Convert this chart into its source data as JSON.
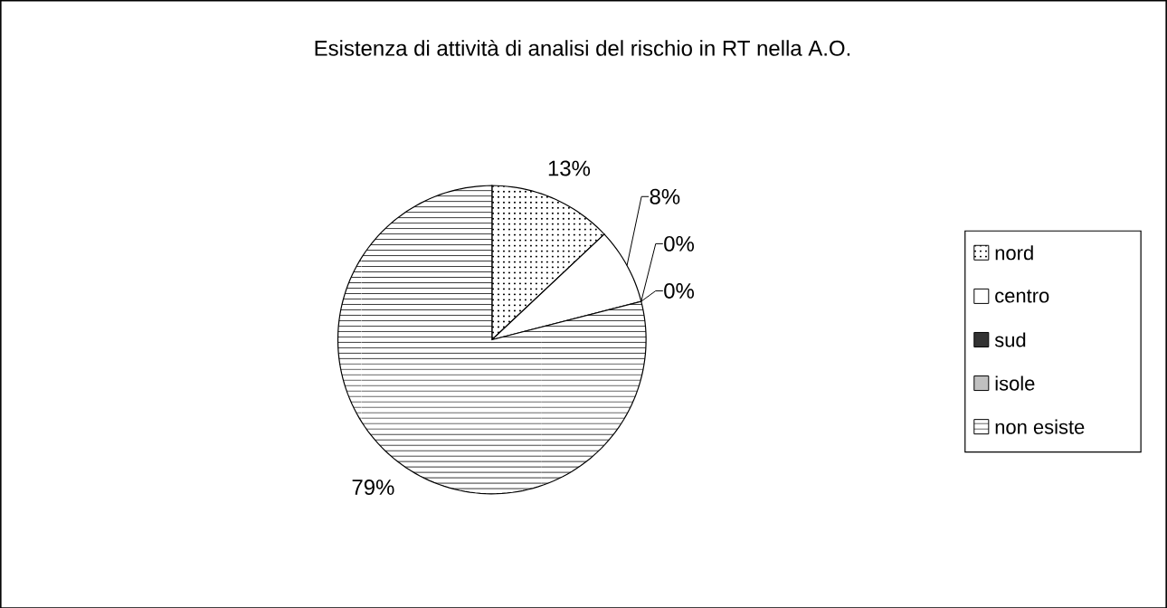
{
  "chart_data": {
    "type": "pie",
    "title": "Esistenza di attività di analisi del rischio in RT nella A.O.",
    "categories": [
      "nord",
      "centro",
      "sud",
      "isole",
      "non esiste"
    ],
    "values": [
      13,
      8,
      0,
      0,
      79
    ],
    "value_labels": [
      "13%",
      "8%",
      "0%",
      "0%",
      "79%"
    ],
    "colors": [
      "#ffffff",
      "#ffffff",
      "#333333",
      "#c0c0c0",
      "#ffffff"
    ],
    "legend": "right"
  }
}
